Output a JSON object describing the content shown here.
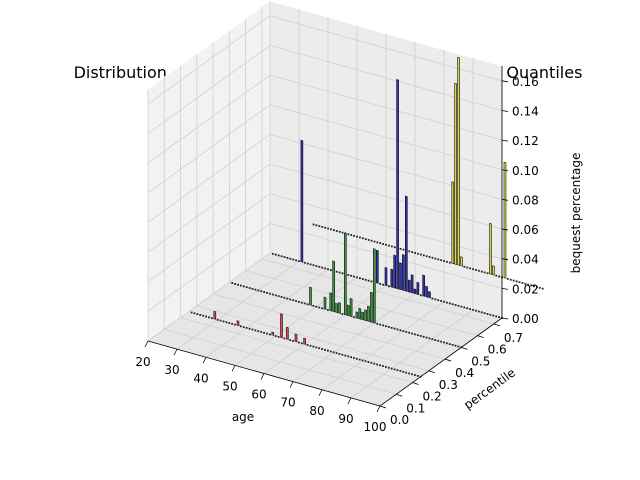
{
  "chart_data": {
    "type": "bar3d",
    "title": "Distribution of Total Bequest Across Ages and Income Quantiles",
    "xlabel": "age",
    "ylabel": "percentile",
    "zlabel": "bequest percentage",
    "xlim": [
      20,
      100
    ],
    "ylim": [
      0,
      0.75
    ],
    "zlim": [
      0,
      0.17
    ],
    "xticks": [
      "20",
      "30",
      "40",
      "50",
      "60",
      "70",
      "80",
      "90",
      "100"
    ],
    "yticks": [
      "0.0",
      "0.1",
      "0.2",
      "0.3",
      "0.4",
      "0.5",
      "0.6",
      "0.7"
    ],
    "zticks": [
      "0.00",
      "0.02",
      "0.04",
      "0.06",
      "0.08",
      "0.10",
      "0.12",
      "0.14",
      "0.16"
    ],
    "grid": true,
    "series": [
      {
        "percentile": 0.25,
        "color": "#d94b4b",
        "ages": [
          21,
          22,
          23,
          24,
          25,
          26,
          27,
          28,
          29,
          30,
          31,
          32,
          33,
          34,
          35,
          36,
          37,
          38,
          39,
          40,
          41,
          42,
          43,
          44,
          45,
          46,
          47,
          48,
          49,
          50,
          51,
          52,
          53,
          54,
          55,
          56,
          57,
          58,
          59,
          60,
          61,
          62,
          63,
          64,
          65,
          66,
          67,
          68,
          69,
          70,
          71,
          72,
          73,
          74,
          75,
          76,
          77,
          78,
          79,
          80,
          81,
          82,
          83,
          84,
          85,
          86,
          87,
          88,
          89,
          90,
          91,
          92,
          93,
          94,
          95,
          96,
          97,
          98,
          99,
          100
        ],
        "values": [
          0,
          0,
          0,
          0,
          0,
          0,
          0,
          0,
          0.005,
          0,
          0,
          0,
          0,
          0,
          0,
          0,
          0.003,
          0,
          0,
          0,
          0,
          0,
          0,
          0,
          0,
          0,
          0,
          0,
          0.002,
          0,
          0,
          0.016,
          0,
          0.008,
          0,
          0,
          0.005,
          0,
          0,
          0.004,
          0,
          0,
          0,
          0,
          0,
          0,
          0,
          0,
          0,
          0,
          0,
          0,
          0,
          0,
          0,
          0,
          0,
          0,
          0,
          0,
          0,
          0,
          0,
          0,
          0,
          0,
          0,
          0,
          0,
          0,
          0,
          0,
          0,
          0,
          0,
          0,
          0,
          0,
          0,
          0
        ]
      },
      {
        "percentile": 0.5,
        "color": "#3a9a3a",
        "ages": [
          21,
          22,
          23,
          24,
          25,
          26,
          27,
          28,
          29,
          30,
          31,
          32,
          33,
          34,
          35,
          36,
          37,
          38,
          39,
          40,
          41,
          42,
          43,
          44,
          45,
          46,
          47,
          48,
          49,
          50,
          51,
          52,
          53,
          54,
          55,
          56,
          57,
          58,
          59,
          60,
          61,
          62,
          63,
          64,
          65,
          66,
          67,
          68,
          69,
          70,
          71,
          72,
          73,
          74,
          75,
          76,
          77,
          78,
          79,
          80,
          81,
          82,
          83,
          84,
          85,
          86,
          87,
          88,
          89,
          90,
          91,
          92,
          93,
          94,
          95,
          96,
          97,
          98,
          99,
          100
        ],
        "values": [
          0,
          0,
          0,
          0,
          0,
          0,
          0,
          0,
          0,
          0,
          0,
          0,
          0,
          0,
          0,
          0,
          0,
          0,
          0,
          0,
          0,
          0,
          0,
          0,
          0,
          0,
          0,
          0.012,
          0,
          0,
          0,
          0,
          0.008,
          0,
          0.012,
          0.034,
          0.006,
          0.007,
          0,
          0.055,
          0.007,
          0.012,
          0,
          0.004,
          0.007,
          0.005,
          0.007,
          0.01,
          0.02,
          0.05,
          0,
          0,
          0,
          0,
          0,
          0,
          0,
          0,
          0,
          0,
          0,
          0,
          0,
          0,
          0,
          0,
          0,
          0,
          0,
          0,
          0,
          0,
          0,
          0,
          0,
          0,
          0,
          0,
          0,
          0
        ]
      },
      {
        "percentile": 0.75,
        "color": "#2e2eb8",
        "ages": [
          21,
          22,
          23,
          24,
          25,
          26,
          27,
          28,
          29,
          30,
          31,
          32,
          33,
          34,
          35,
          36,
          37,
          38,
          39,
          40,
          41,
          42,
          43,
          44,
          45,
          46,
          47,
          48,
          49,
          50,
          51,
          52,
          53,
          54,
          55,
          56,
          57,
          58,
          59,
          60,
          61,
          62,
          63,
          64,
          65,
          66,
          67,
          68,
          69,
          70,
          71,
          72,
          73,
          74,
          75,
          76,
          77,
          78,
          79,
          80,
          81,
          82,
          83,
          84,
          85,
          86,
          87,
          88,
          89,
          90,
          91,
          92,
          93,
          94,
          95,
          96,
          97,
          98,
          99,
          100
        ],
        "values": [
          0,
          0,
          0,
          0,
          0,
          0,
          0,
          0,
          0,
          0,
          0.082,
          0,
          0,
          0,
          0,
          0,
          0,
          0,
          0,
          0,
          0,
          0,
          0,
          0,
          0,
          0,
          0,
          0,
          0,
          0,
          0,
          0,
          0,
          0,
          0,
          0,
          0.022,
          0,
          0,
          0.012,
          0,
          0.012,
          0.022,
          0.141,
          0.018,
          0.024,
          0.064,
          0.008,
          0.012,
          0.003,
          0.008,
          0,
          0.014,
          0.007,
          0.004,
          0,
          0,
          0,
          0,
          0,
          0,
          0,
          0,
          0,
          0,
          0,
          0,
          0,
          0,
          0,
          0,
          0,
          0,
          0,
          0,
          0,
          0,
          0,
          0,
          0
        ]
      },
      {
        "percentile": 1.0,
        "color": "#d9d94a",
        "ages": [
          21,
          22,
          23,
          24,
          25,
          26,
          27,
          28,
          29,
          30,
          31,
          32,
          33,
          34,
          35,
          36,
          37,
          38,
          39,
          40,
          41,
          42,
          43,
          44,
          45,
          46,
          47,
          48,
          49,
          50,
          51,
          52,
          53,
          54,
          55,
          56,
          57,
          58,
          59,
          60,
          61,
          62,
          63,
          64,
          65,
          66,
          67,
          68,
          69,
          70,
          71,
          72,
          73,
          74,
          75,
          76,
          77,
          78,
          79,
          80,
          81,
          82,
          83,
          84,
          85,
          86,
          87,
          88,
          89,
          90,
          91,
          92,
          93,
          94,
          95,
          96,
          97,
          98,
          99,
          100
        ],
        "values": [
          0,
          0,
          0,
          0,
          0,
          0,
          0,
          0,
          0,
          0,
          0,
          0,
          0,
          0,
          0,
          0,
          0,
          0,
          0,
          0,
          0,
          0,
          0,
          0,
          0,
          0,
          0,
          0,
          0,
          0,
          0,
          0,
          0,
          0,
          0,
          0,
          0,
          0,
          0,
          0,
          0,
          0,
          0,
          0,
          0,
          0,
          0,
          0,
          0.055,
          0.122,
          0.14,
          0.006,
          0,
          0,
          0,
          0,
          0,
          0,
          0,
          0,
          0,
          0.034,
          0.006,
          0,
          0,
          0,
          0.078,
          0,
          0,
          0,
          0,
          0,
          0,
          0,
          0,
          0,
          0,
          0,
          0,
          0
        ]
      }
    ]
  }
}
